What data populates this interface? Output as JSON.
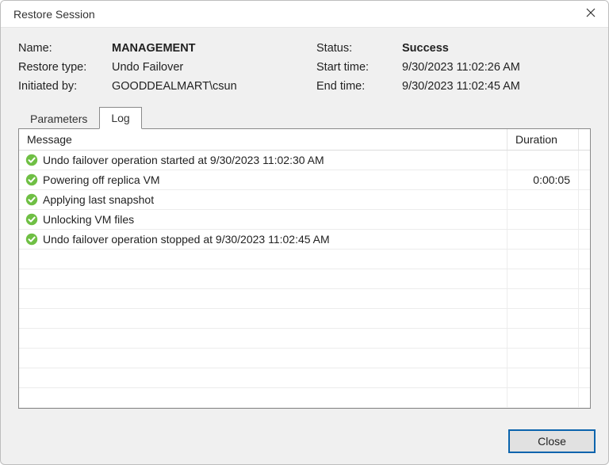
{
  "window": {
    "title": "Restore Session"
  },
  "info": {
    "name_label": "Name:",
    "name_value": "MANAGEMENT",
    "type_label": "Restore type:",
    "type_value": "Undo Failover",
    "initiated_label": "Initiated by:",
    "initiated_value": "GOODDEALMART\\csun",
    "status_label": "Status:",
    "status_value": "Success",
    "start_label": "Start time:",
    "start_value": "9/30/2023 11:02:26 AM",
    "end_label": "End time:",
    "end_value": "9/30/2023 11:02:45 AM"
  },
  "tabs": {
    "parameters": "Parameters",
    "log": "Log",
    "active": "log"
  },
  "grid": {
    "headers": {
      "message": "Message",
      "duration": "Duration"
    },
    "blank_rows": 8,
    "rows": [
      {
        "status": "success",
        "message": "Undo failover operation started at 9/30/2023 11:02:30 AM",
        "duration": ""
      },
      {
        "status": "success",
        "message": "Powering off replica VM",
        "duration": "0:00:05"
      },
      {
        "status": "success",
        "message": "Applying last snapshot",
        "duration": ""
      },
      {
        "status": "success",
        "message": "Unlocking VM files",
        "duration": ""
      },
      {
        "status": "success",
        "message": "Undo failover operation stopped at 9/30/2023 11:02:45 AM",
        "duration": ""
      }
    ]
  },
  "buttons": {
    "close": "Close"
  },
  "colors": {
    "success_icon": "#6fbf44",
    "window_bg": "#f0f0f0",
    "panel_border": "#8a8a8a",
    "button_border": "#0a64ad",
    "button_bg": "#e1e1e1",
    "row_border": "#ececec"
  }
}
